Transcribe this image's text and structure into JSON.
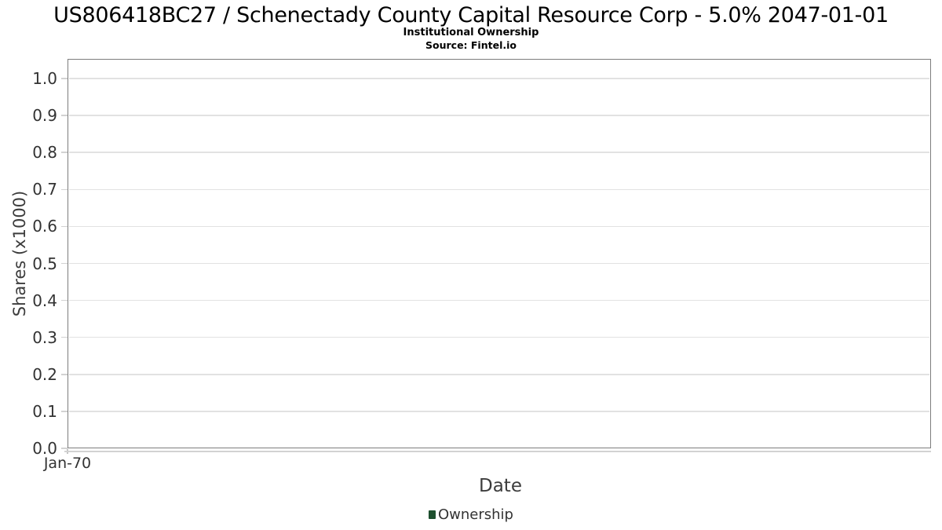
{
  "header": {
    "title": "US806418BC27 / Schenectady County Capital Resource Corp - 5.0% 2047-01-01",
    "subtitle": "Institutional Ownership",
    "source": "Source: Fintel.io"
  },
  "chart_data": {
    "type": "line",
    "title": "US806418BC27 / Schenectady County Capital Resource Corp - 5.0% 2047-01-01",
    "subtitle": "Institutional Ownership",
    "source": "Source: Fintel.io",
    "xlabel": "Date",
    "ylabel": "Shares (x1000)",
    "x_ticks": [
      "Jan-70"
    ],
    "x_tick_positions": [
      0.0
    ],
    "y_ticks": [
      "0.0",
      "0.1",
      "0.2",
      "0.3",
      "0.4",
      "0.5",
      "0.6",
      "0.7",
      "0.8",
      "0.9",
      "1.0"
    ],
    "ylim": [
      0.0,
      1.05
    ],
    "grid": true,
    "legend_position": "bottom",
    "series": [
      {
        "name": "Ownership",
        "color": "#1d4f2e",
        "x": [],
        "values": []
      }
    ]
  }
}
